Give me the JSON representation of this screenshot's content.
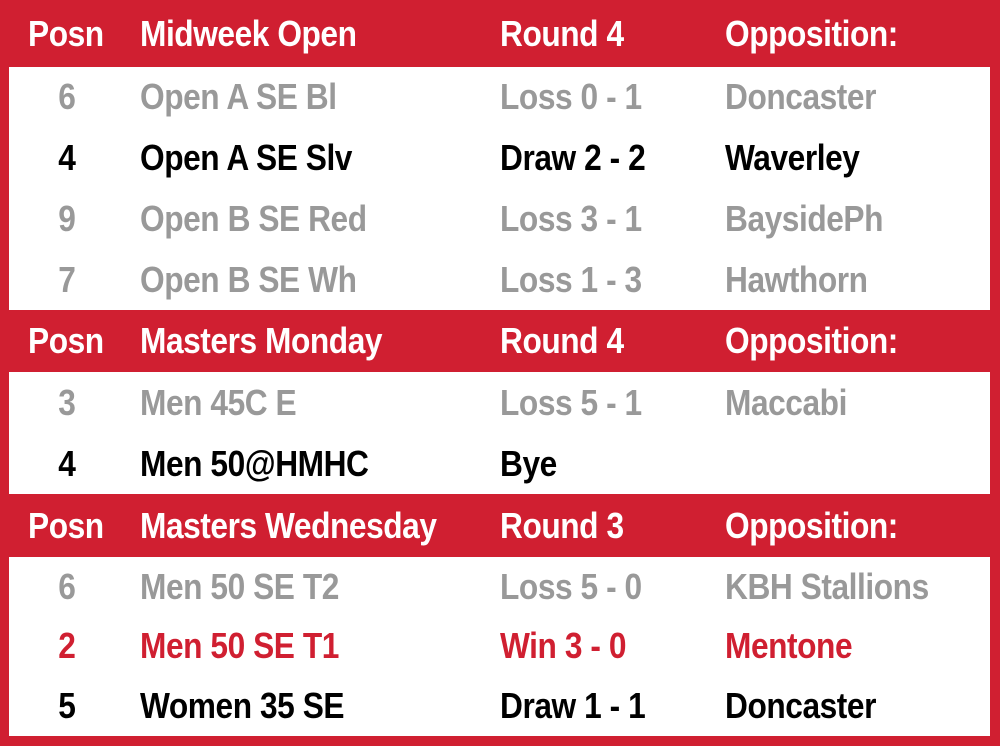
{
  "colors": {
    "brand_red": "#d01f31",
    "inactive_gray": "#999999",
    "text_black": "#000000",
    "header_text": "#ffffff"
  },
  "sections": [
    {
      "header": {
        "posn": "Posn",
        "competition": "Midweek Open",
        "round": "Round 4",
        "opposition": "Opposition:"
      },
      "rows": [
        {
          "posn": "6",
          "team": "Open A SE Bl",
          "result": "Loss 0 - 1",
          "opponent": "Doncaster",
          "style": "gray"
        },
        {
          "posn": "4",
          "team": "Open A SE Slv",
          "result": "Draw 2 - 2",
          "opponent": "Waverley",
          "style": "black"
        },
        {
          "posn": "9",
          "team": "Open B SE Red",
          "result": "Loss 3 - 1",
          "opponent": "BaysidePh",
          "style": "gray"
        },
        {
          "posn": "7",
          "team": "Open B SE Wh",
          "result": "Loss 1 - 3",
          "opponent": "Hawthorn",
          "style": "gray"
        }
      ]
    },
    {
      "header": {
        "posn": "Posn",
        "competition": "Masters Monday",
        "round": "Round 4",
        "opposition": "Opposition:"
      },
      "rows": [
        {
          "posn": "3",
          "team": "Men 45C E",
          "result": "Loss 5 - 1",
          "opponent": "Maccabi",
          "style": "gray"
        },
        {
          "posn": "4",
          "team": "Men 50@HMHC",
          "result": "Bye",
          "opponent": "",
          "style": "black"
        }
      ]
    },
    {
      "header": {
        "posn": "Posn",
        "competition": "Masters Wednesday",
        "round": "Round 3",
        "opposition": "Opposition:"
      },
      "rows": [
        {
          "posn": "6",
          "team": "Men 50 SE T2",
          "result": "Loss 5 - 0",
          "opponent": "KBH Stallions",
          "style": "gray"
        },
        {
          "posn": "2",
          "team": "Men 50 SE T1",
          "result": "Win 3 - 0",
          "opponent": "Mentone",
          "style": "red"
        },
        {
          "posn": "5",
          "team": "Women 35 SE",
          "result": "Draw 1 - 1",
          "opponent": "Doncaster",
          "style": "black"
        }
      ]
    }
  ]
}
